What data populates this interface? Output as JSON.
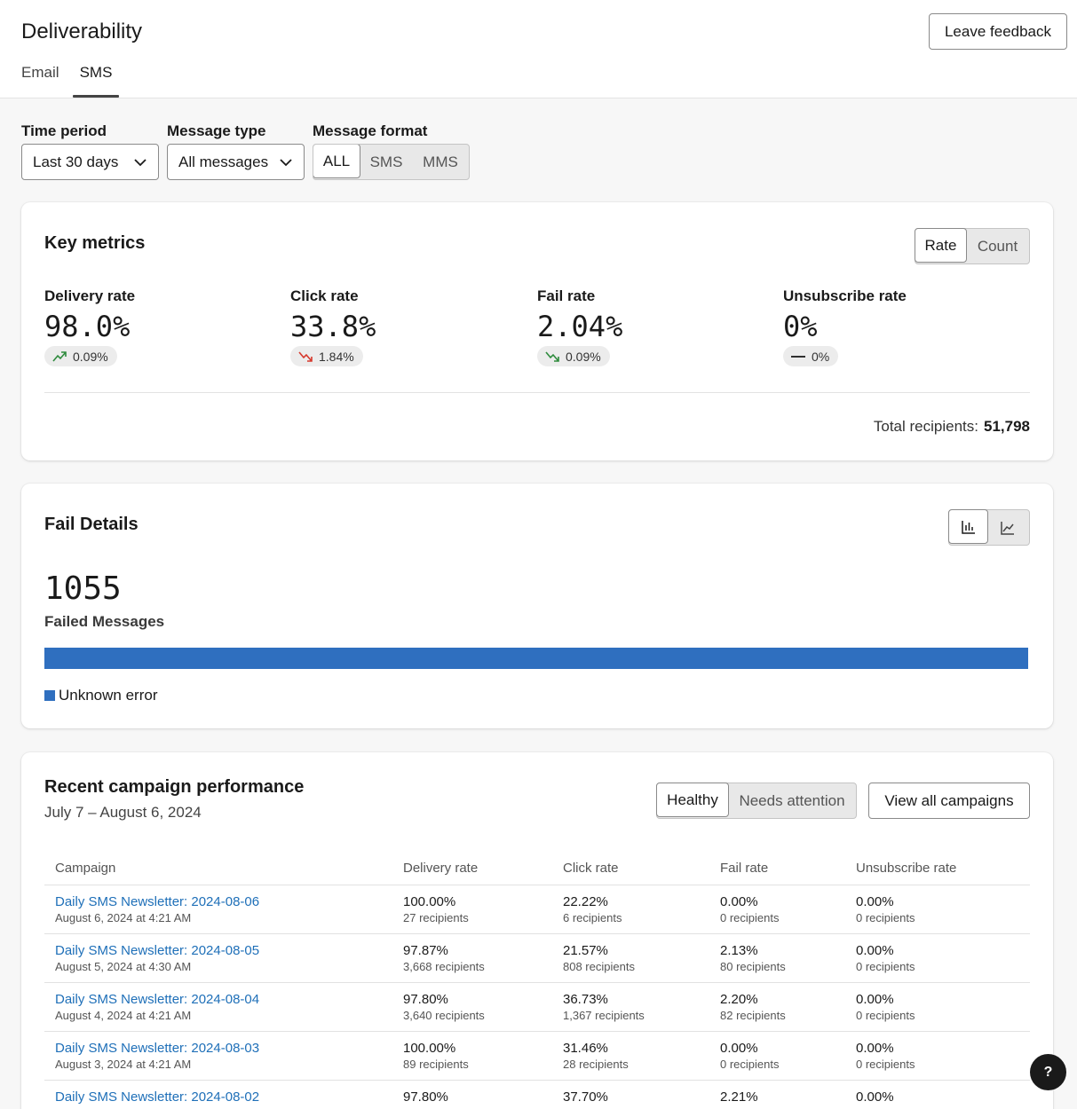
{
  "header": {
    "title": "Deliverability",
    "feedback_label": "Leave feedback",
    "tabs": [
      {
        "label": "Email"
      },
      {
        "label": "SMS"
      }
    ]
  },
  "filters": {
    "time_period": {
      "label": "Time period",
      "value": "Last 30 days"
    },
    "message_type": {
      "label": "Message type",
      "value": "All messages"
    },
    "message_format": {
      "label": "Message format",
      "options": [
        "ALL",
        "SMS",
        "MMS"
      ],
      "selected": "ALL"
    }
  },
  "key_metrics": {
    "title": "Key metrics",
    "toggle": [
      "Rate",
      "Count"
    ],
    "metrics": [
      {
        "label": "Delivery rate",
        "value": "98.0%",
        "change": "0.09%",
        "trend": "up",
        "trend_color": "#2e8b3d"
      },
      {
        "label": "Click rate",
        "value": "33.8%",
        "change": "1.84%",
        "trend": "down",
        "trend_color": "#d6382c"
      },
      {
        "label": "Fail rate",
        "value": "2.04%",
        "change": "0.09%",
        "trend": "down",
        "trend_color": "#2e8b3d"
      },
      {
        "label": "Unsubscribe rate",
        "value": "0%",
        "change": "0%",
        "trend": "flat",
        "trend_color": "#1a1a1a"
      }
    ],
    "total_label": "Total recipients:",
    "total_value": "51,798"
  },
  "fail_details": {
    "title": "Fail Details",
    "count": "1055",
    "count_label": "Failed Messages",
    "legend": "Unknown error",
    "bar_color": "#2f6fbf",
    "bar_fraction": 1.0
  },
  "campaigns": {
    "title": "Recent campaign performance",
    "date_range": "July 7 – August 6, 2024",
    "toggle": [
      "Healthy",
      "Needs attention"
    ],
    "view_all_label": "View all campaigns",
    "columns": [
      "Campaign",
      "Delivery rate",
      "Click rate",
      "Fail rate",
      "Unsubscribe rate"
    ],
    "rows": [
      {
        "name": "Daily SMS Newsletter: 2024-08-06",
        "date": "August 6, 2024 at 4:21 AM",
        "delivery": "100.00%",
        "delivery_sub": "27 recipients",
        "click": "22.22%",
        "click_sub": "6 recipients",
        "fail": "0.00%",
        "fail_sub": "0 recipients",
        "unsub": "0.00%",
        "unsub_sub": "0 recipients"
      },
      {
        "name": "Daily SMS Newsletter: 2024-08-05",
        "date": "August 5, 2024 at 4:30 AM",
        "delivery": "97.87%",
        "delivery_sub": "3,668 recipients",
        "click": "21.57%",
        "click_sub": "808 recipients",
        "fail": "2.13%",
        "fail_sub": "80 recipients",
        "unsub": "0.00%",
        "unsub_sub": "0 recipients"
      },
      {
        "name": "Daily SMS Newsletter: 2024-08-04",
        "date": "August 4, 2024 at 4:21 AM",
        "delivery": "97.80%",
        "delivery_sub": "3,640 recipients",
        "click": "36.73%",
        "click_sub": "1,367 recipients",
        "fail": "2.20%",
        "fail_sub": "82 recipients",
        "unsub": "0.00%",
        "unsub_sub": "0 recipients"
      },
      {
        "name": "Daily SMS Newsletter: 2024-08-03",
        "date": "August 3, 2024 at 4:21 AM",
        "delivery": "100.00%",
        "delivery_sub": "89 recipients",
        "click": "31.46%",
        "click_sub": "28 recipients",
        "fail": "0.00%",
        "fail_sub": "0 recipients",
        "unsub": "0.00%",
        "unsub_sub": "0 recipients"
      },
      {
        "name": "Daily SMS Newsletter: 2024-08-02",
        "date": "",
        "delivery": "97.80%",
        "delivery_sub": "",
        "click": "37.70%",
        "click_sub": "",
        "fail": "2.21%",
        "fail_sub": "",
        "unsub": "0.00%",
        "unsub_sub": ""
      }
    ]
  },
  "help_label": "?"
}
